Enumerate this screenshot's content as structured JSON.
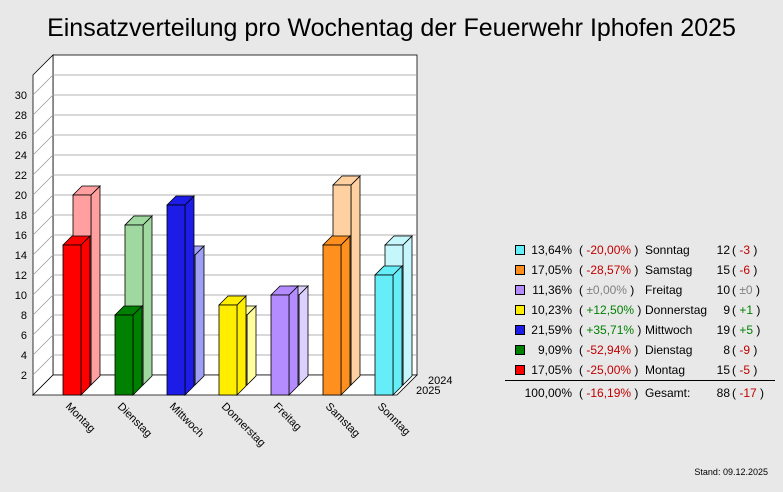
{
  "title": "Einsatzverteilung pro Wochentag der Feuerwehr Iphofen 2025",
  "footer": "Stand: 09.12.2025",
  "chart_data": {
    "type": "bar",
    "categories": [
      "Montag",
      "Dienstag",
      "Mittwoch",
      "Donnerstag",
      "Freitag",
      "Samstag",
      "Sonntag"
    ],
    "series": [
      {
        "name": "2025",
        "values": [
          15,
          8,
          19,
          9,
          10,
          15,
          12
        ]
      },
      {
        "name": "2024",
        "values": [
          20,
          17,
          14,
          8,
          10,
          21,
          15
        ]
      }
    ],
    "ylim": [
      0,
      30
    ],
    "yticks": [
      "2",
      "4",
      "6",
      "8",
      "10",
      "12",
      "14",
      "16",
      "18",
      "20",
      "22",
      "24",
      "26",
      "28",
      "30"
    ],
    "grid": true,
    "colors_front": [
      "#ff0000",
      "#008000",
      "#1c1ce6",
      "#ffee00",
      "#b48cff",
      "#ff9020",
      "#66eef8"
    ],
    "colors_back": [
      "#ff9f9f",
      "#9fd99f",
      "#9f9ff5",
      "#ffff9f",
      "#dcd0ff",
      "#ffd0a0",
      "#c4f6fc"
    ],
    "series_labels": [
      "2024",
      "2025"
    ]
  },
  "legend": {
    "rows": [
      {
        "color": "#66eef8",
        "pct": "13,64%",
        "change": "-20,00%",
        "day": "Sonntag",
        "count": "12",
        "delta": "-3",
        "sign": "neg"
      },
      {
        "color": "#ff9020",
        "pct": "17,05%",
        "change": "-28,57%",
        "day": "Samstag",
        "count": "15",
        "delta": "-6",
        "sign": "neg"
      },
      {
        "color": "#b48cff",
        "pct": "11,36%",
        "change": "±0,00%",
        "day": "Freitag",
        "count": "10",
        "delta": "±0",
        "sign": "zer"
      },
      {
        "color": "#ffee00",
        "pct": "10,23%",
        "change": "+12,50%",
        "day": "Donnerstag",
        "count": "9",
        "delta": "+1",
        "sign": "pos"
      },
      {
        "color": "#1c1ce6",
        "pct": "21,59%",
        "change": "+35,71%",
        "day": "Mittwoch",
        "count": "19",
        "delta": "+5",
        "sign": "pos"
      },
      {
        "color": "#008000",
        "pct": "9,09%",
        "change": "-52,94%",
        "day": "Dienstag",
        "count": "8",
        "delta": "-9",
        "sign": "neg"
      },
      {
        "color": "#ff0000",
        "pct": "17,05%",
        "change": "-25,00%",
        "day": "Montag",
        "count": "15",
        "delta": "-5",
        "sign": "neg"
      }
    ],
    "total": {
      "pct": "100,00%",
      "change": "-16,19%",
      "label": "Gesamt:",
      "count": "88",
      "delta": "-17"
    }
  }
}
